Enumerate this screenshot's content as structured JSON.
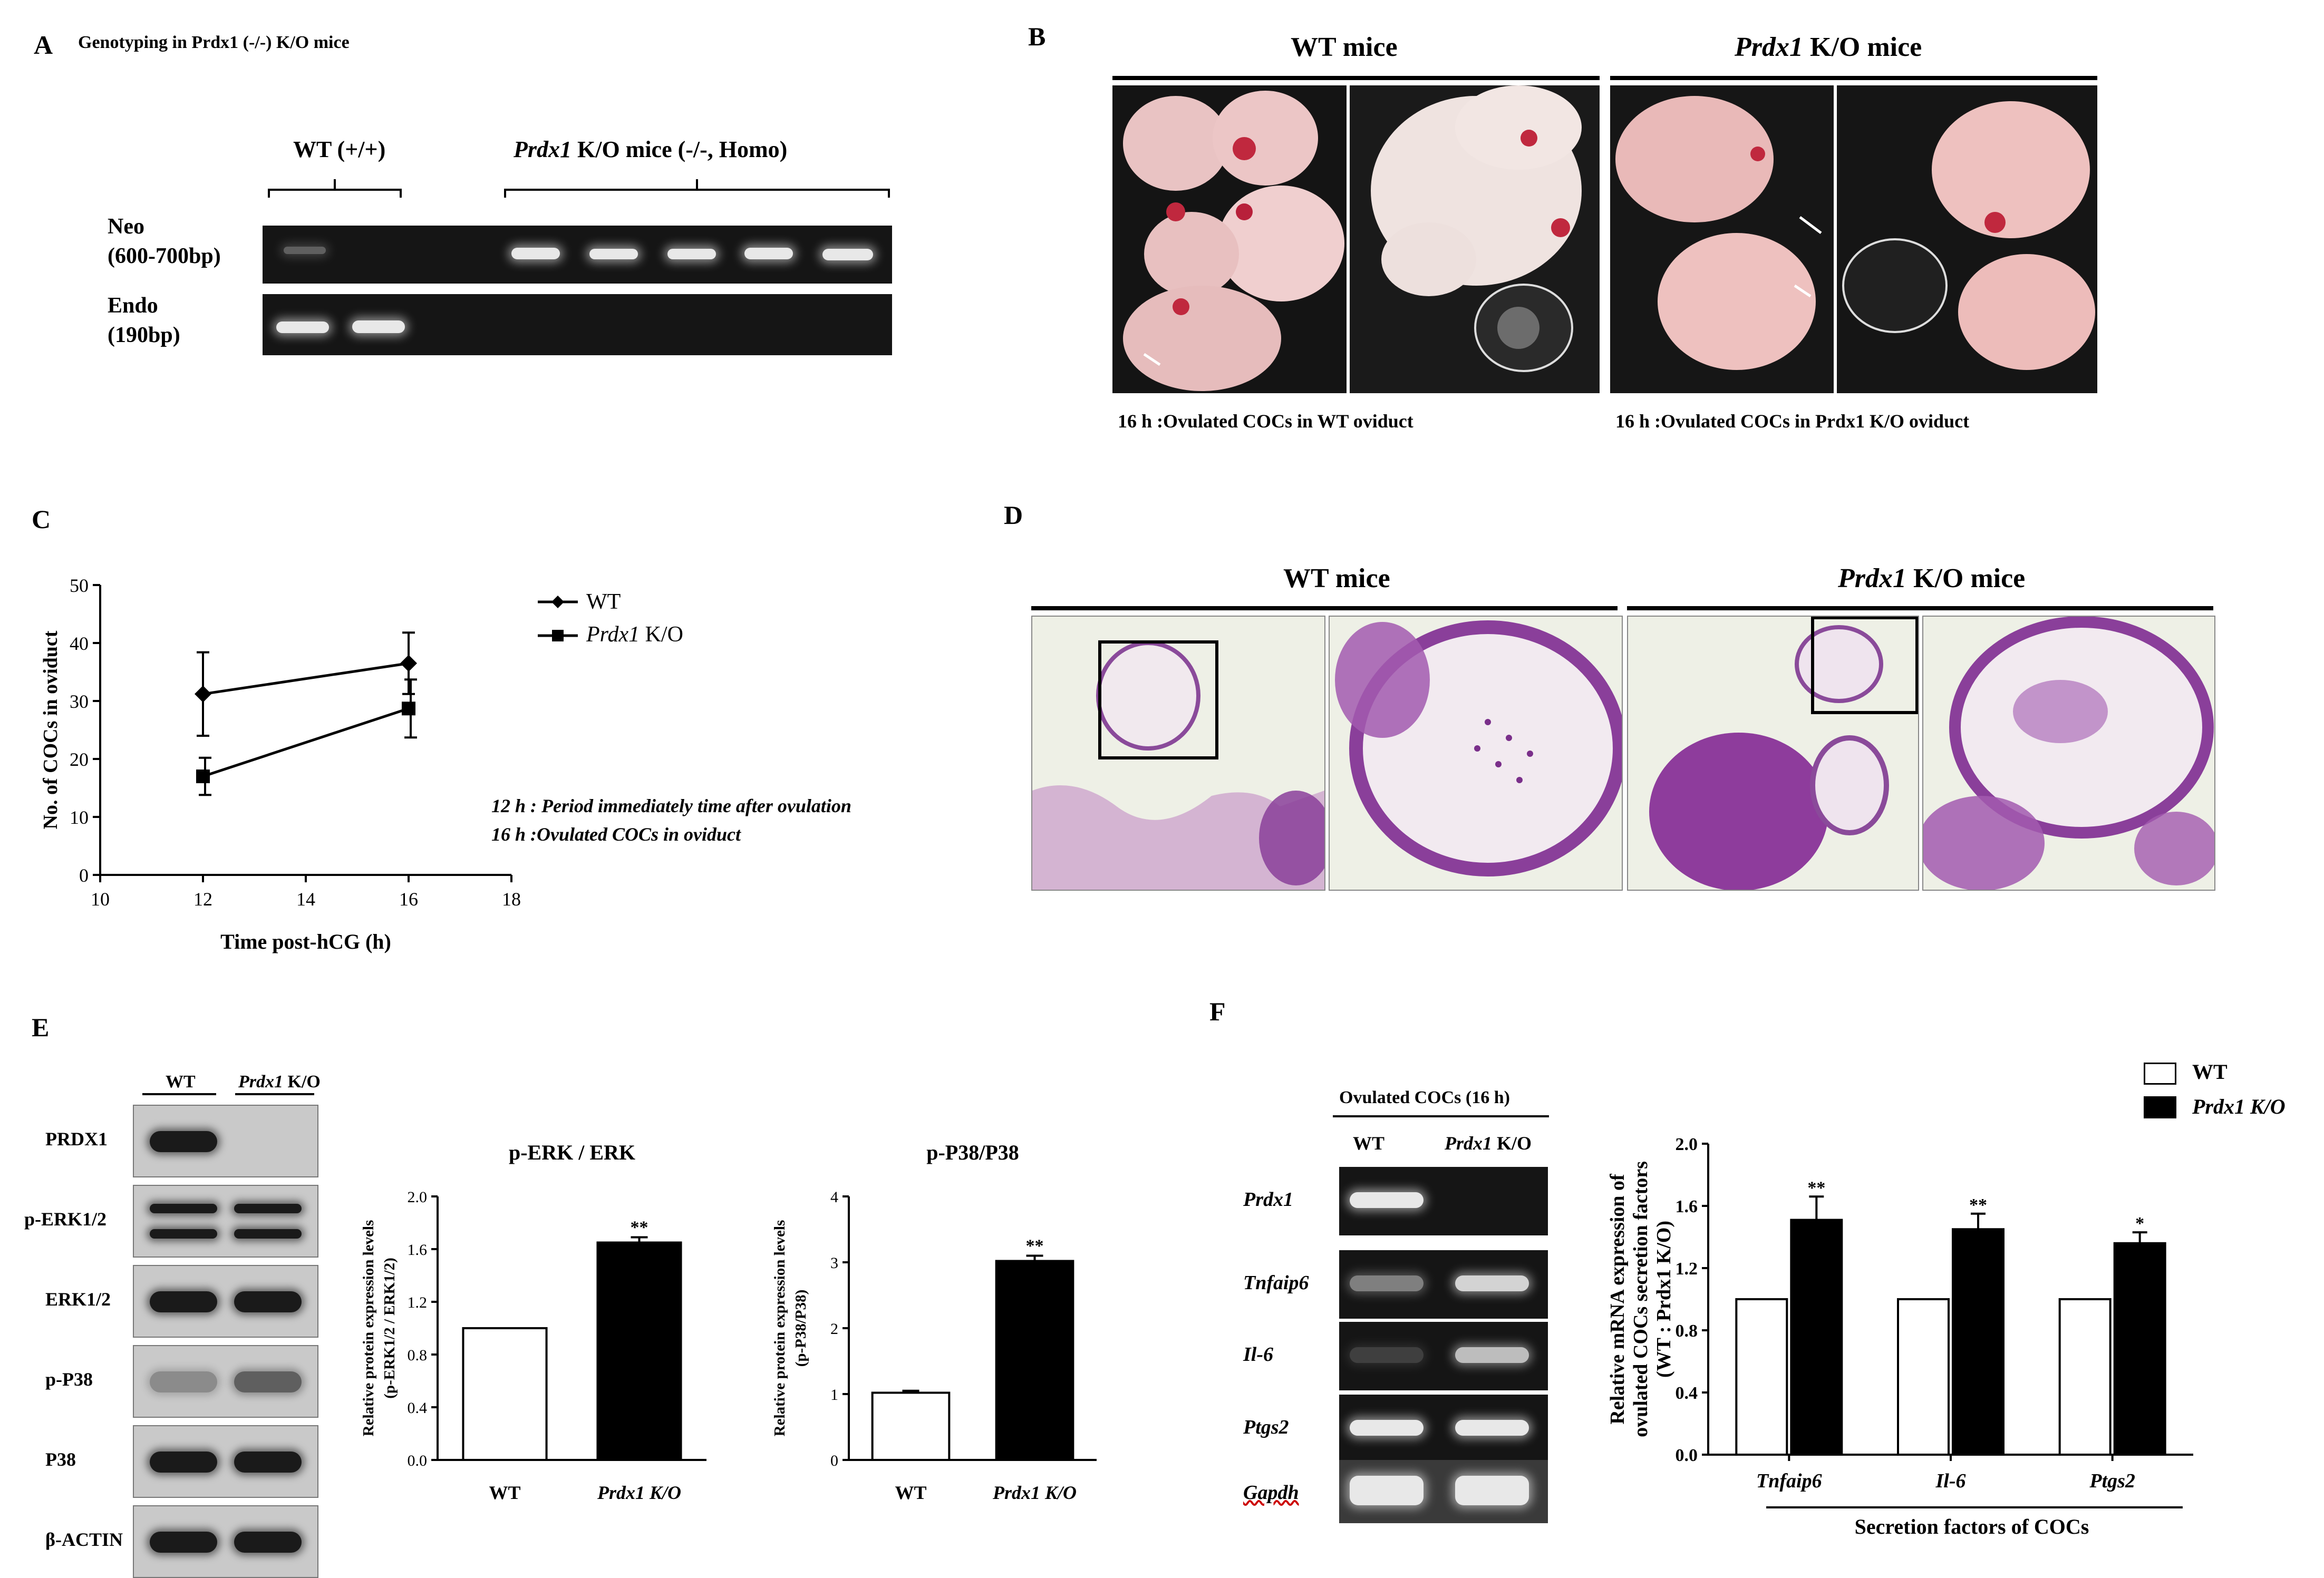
{
  "panelA": {
    "letter": "A",
    "title": "Genotyping in Prdx1 (-/-) K/O mice",
    "wt_label": "WT (+/+)",
    "ko_label_italic": "Prdx1",
    "ko_label_rest": " K/O mice  (-/-, Homo)",
    "row1_label": "Neo",
    "row1_sub": "(600-700bp)",
    "row2_label": "Endo",
    "row2_sub": "(190bp)"
  },
  "panelB": {
    "letter": "B",
    "wt_title": "WT mice",
    "ko_title_italic": "Prdx1",
    "ko_title_rest": " K/O mice",
    "wt_caption": "16 h :Ovulated COCs in WT oviduct",
    "ko_caption": "16 h :Ovulated COCs in Prdx1 K/O oviduct"
  },
  "panelC": {
    "letter": "C",
    "note1": "12 h : Period immediately time after ovulation",
    "note2": "16 h :Ovulated COCs in oviduct",
    "legend_wt": "WT",
    "legend_ko_italic": "Prdx1",
    "legend_ko_rest": " K/O"
  },
  "panelD": {
    "letter": "D",
    "wt_title": "WT mice",
    "ko_title_italic": "Prdx1",
    "ko_title_rest": " K/O mice"
  },
  "panelE": {
    "letter": "E",
    "col_wt": "WT",
    "col_ko_italic": "Prdx1",
    "col_ko_rest": " K/O",
    "rows": [
      "PRDX1",
      "p-ERK1/2",
      "ERK1/2",
      "p-P38",
      "P38",
      "β-ACTIN"
    ]
  },
  "panelF": {
    "letter": "F",
    "gel_title": "Ovulated COCs (16 h)",
    "col_wt": "WT",
    "col_ko_italic": "Prdx1",
    "col_ko_rest": " K/O",
    "rows": [
      "Prdx1",
      "Tnfaip6",
      "Il-6",
      "Ptgs2",
      "Gapdh"
    ]
  },
  "chart_data": [
    {
      "id": "C",
      "type": "line",
      "x": [
        12,
        16
      ],
      "xlabel": "Time post-hCG (h)",
      "ylabel": "No. of COCs in oviduct",
      "xlim": [
        10,
        18
      ],
      "ylim": [
        0,
        50
      ],
      "xticks": [
        "10",
        "12",
        "14",
        "16",
        "18"
      ],
      "yticks": [
        "0",
        "10",
        "20",
        "30",
        "40",
        "50"
      ],
      "series": [
        {
          "name": "WT",
          "values": [
            31.2,
            36.5
          ],
          "errors": [
            7.2,
            5.3
          ],
          "marker": "diamond"
        },
        {
          "name": "Prdx1 K/O",
          "values": [
            17.0,
            28.7
          ],
          "errors": [
            3.2,
            5.0
          ],
          "marker": "square"
        }
      ],
      "legend": "top-right",
      "grid": false
    },
    {
      "id": "E1",
      "type": "bar",
      "title": "p-ERK / ERK",
      "categories": [
        "WT",
        "Prdx1  K/O"
      ],
      "values": [
        1.0,
        1.65
      ],
      "errors": [
        0,
        0.04
      ],
      "significance": [
        "",
        "**"
      ],
      "ylabel": "Relative protein expression levels",
      "ylabel2": "(p-ERK1/2 / ERK1/2)",
      "ylim": [
        0,
        2.0
      ],
      "yticks": [
        "0.0",
        "0.4",
        "0.8",
        "1.2",
        "1.6",
        "2.0"
      ],
      "fills": [
        "#ffffff",
        "#000000"
      ]
    },
    {
      "id": "E2",
      "type": "bar",
      "title": "p-P38/P38",
      "categories": [
        "WT",
        "Prdx1  K/O"
      ],
      "values": [
        1.02,
        3.02
      ],
      "errors": [
        0.03,
        0.08
      ],
      "significance": [
        "",
        "**"
      ],
      "ylabel": "Relative protein expression levels",
      "ylabel2": "(p-P38/P38)",
      "ylim": [
        0,
        4
      ],
      "yticks": [
        "0",
        "1",
        "2",
        "3",
        "4"
      ],
      "fills": [
        "#ffffff",
        "#000000"
      ]
    },
    {
      "id": "F",
      "type": "bar",
      "categories": [
        "Tnfaip6",
        "Il-6",
        "Ptgs2"
      ],
      "series": [
        {
          "name": "WT",
          "values": [
            1.0,
            1.0,
            1.0
          ],
          "errors": [
            0,
            0,
            0
          ],
          "fill": "#ffffff"
        },
        {
          "name": "Prdx1 K/O",
          "values": [
            1.51,
            1.45,
            1.36
          ],
          "errors": [
            0.15,
            0.1,
            0.07
          ],
          "fill": "#000000"
        }
      ],
      "significance": [
        "**",
        "**",
        "*"
      ],
      "xlabel": "Secretion factors of COCs",
      "ylabel": "Relative mRNA expression of",
      "ylabel2": "ovulated  COCs secretion factors",
      "ylabel3": "(WT : Prdx1 K/O)",
      "ylim": [
        0,
        2.0
      ],
      "yticks": [
        "0.0",
        "0.4",
        "0.8",
        "1.2",
        "1.6",
        "2.0"
      ],
      "legend": "top-right"
    }
  ]
}
